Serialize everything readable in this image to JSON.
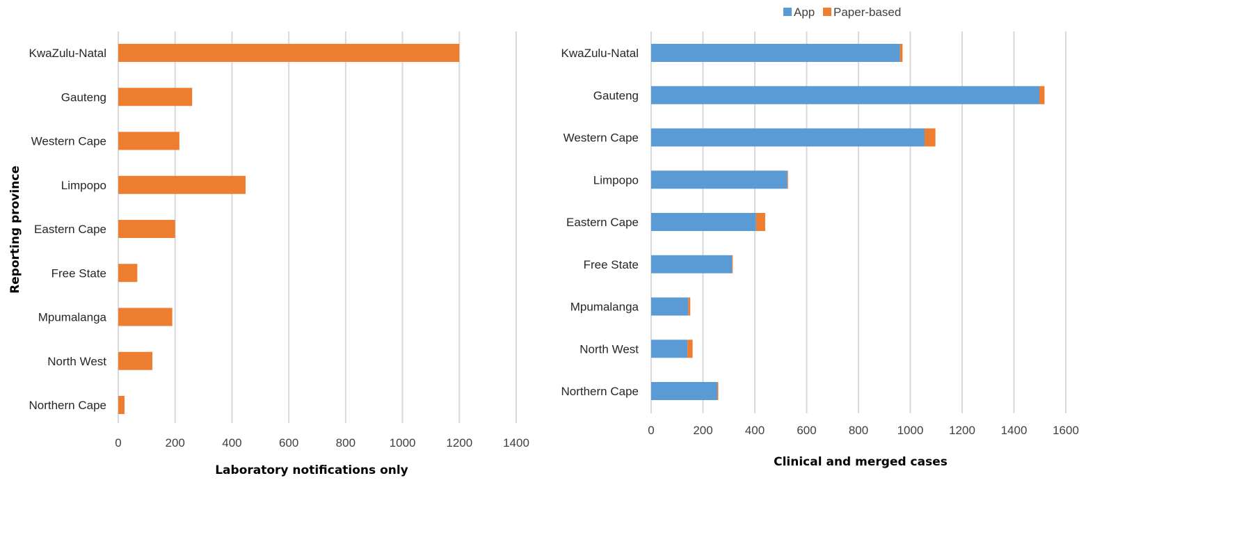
{
  "chart_data": [
    {
      "type": "bar",
      "orientation": "horizontal",
      "categories": [
        "KwaZulu-Natal",
        "Gauteng",
        "Western Cape",
        "Limpopo",
        "Eastern Cape",
        "Free State",
        "Mpumalanga",
        "North West",
        "Northern Cape"
      ],
      "series": [
        {
          "values": [
            1200,
            260,
            215,
            448,
            200,
            67,
            190,
            120,
            22
          ],
          "color": "#ED7D31"
        }
      ],
      "xlabel": "Laboratory notifications only",
      "ylabel": "Reporting province",
      "xlim": [
        0,
        1400
      ],
      "xticks": [
        0,
        200,
        400,
        600,
        800,
        1000,
        1200,
        1400
      ],
      "grid": "vertical",
      "legend": "none"
    },
    {
      "type": "bar",
      "orientation": "horizontal",
      "stacked": true,
      "categories": [
        "KwaZulu-Natal",
        "Gauteng",
        "Western Cape",
        "Limpopo",
        "Eastern Cape",
        "Free State",
        "Mpumalanga",
        "North West",
        "Northern Cape"
      ],
      "series": [
        {
          "name": "App",
          "values": [
            960,
            1498,
            1055,
            525,
            405,
            312,
            143,
            140,
            255
          ],
          "color": "#5B9BD5"
        },
        {
          "name": "Paper-based",
          "values": [
            10,
            20,
            42,
            3,
            35,
            3,
            8,
            20,
            4
          ],
          "color": "#ED7D31"
        }
      ],
      "xlabel": "Clinical and merged cases",
      "ylabel": "",
      "xlim": [
        0,
        1600
      ],
      "xticks": [
        0,
        200,
        400,
        600,
        800,
        1000,
        1200,
        1400,
        1600
      ],
      "grid": "vertical",
      "legend": "top"
    }
  ]
}
